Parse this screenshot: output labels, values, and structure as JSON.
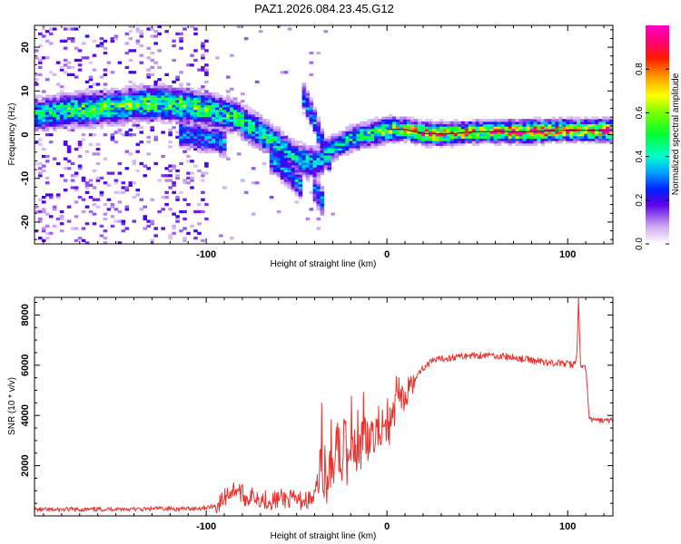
{
  "figure_title": "PAZ1.2026.084.23.45.G12",
  "chart_data": [
    {
      "type": "heatmap",
      "title": "PAZ1.2026.084.23.45.G12",
      "xlabel": "Height of straight line (km)",
      "ylabel": "Frequency (Hz)",
      "xlim": [
        -195,
        125
      ],
      "ylim": [
        -25,
        25
      ],
      "x_ticks": [
        -100,
        0,
        100
      ],
      "y_ticks": [
        -20,
        -10,
        0,
        10,
        20
      ],
      "colorbar": {
        "label": "Normalized spectral amplitude",
        "range": [
          0,
          1
        ],
        "ticks": [
          0.0,
          0.2,
          0.4,
          0.6,
          0.8
        ],
        "tick_labels": [
          "0.0",
          "0.2",
          "0.4",
          "0.6",
          "0.8"
        ]
      },
      "ridge": [
        {
          "x": -192,
          "f": 4.5,
          "a": 0.38,
          "w": 4
        },
        {
          "x": -185,
          "f": 5,
          "a": 0.42,
          "w": 4
        },
        {
          "x": -175,
          "f": 5.5,
          "a": 0.45,
          "w": 4
        },
        {
          "x": -165,
          "f": 5.5,
          "a": 0.5,
          "w": 4
        },
        {
          "x": -155,
          "f": 6,
          "a": 0.48,
          "w": 4
        },
        {
          "x": -145,
          "f": 6.5,
          "a": 0.5,
          "w": 4
        },
        {
          "x": -135,
          "f": 7,
          "a": 0.52,
          "w": 4
        },
        {
          "x": -125,
          "f": 7,
          "a": 0.5,
          "w": 4
        },
        {
          "x": -115,
          "f": 6.5,
          "a": 0.5,
          "w": 4
        },
        {
          "x": -105,
          "f": 6,
          "a": 0.48,
          "w": 4
        },
        {
          "x": -95,
          "f": 5,
          "a": 0.45,
          "w": 4
        },
        {
          "x": -85,
          "f": 4,
          "a": 0.42,
          "w": 4
        },
        {
          "x": -78,
          "f": 2,
          "a": 0.45,
          "w": 4
        },
        {
          "x": -70,
          "f": 0,
          "a": 0.42,
          "w": 4
        },
        {
          "x": -60,
          "f": -3,
          "a": 0.38,
          "w": 4
        },
        {
          "x": -50,
          "f": -6,
          "a": 0.35,
          "w": 4
        },
        {
          "x": -40,
          "f": -7,
          "a": 0.35,
          "w": 4
        },
        {
          "x": -30,
          "f": -3,
          "a": 0.38,
          "w": 3
        },
        {
          "x": -20,
          "f": -1,
          "a": 0.42,
          "w": 3
        },
        {
          "x": -10,
          "f": 0,
          "a": 0.45,
          "w": 3
        },
        {
          "x": 0,
          "f": 1,
          "a": 0.55,
          "w": 3
        },
        {
          "x": 10,
          "f": 1,
          "a": 0.6,
          "w": 2.5
        },
        {
          "x": 20,
          "f": 0,
          "a": 0.85,
          "w": 2.5
        },
        {
          "x": 35,
          "f": 0,
          "a": 0.7,
          "w": 2.5
        },
        {
          "x": 50,
          "f": 0.5,
          "a": 0.65,
          "w": 2.5
        },
        {
          "x": 65,
          "f": 0.5,
          "a": 0.8,
          "w": 2.5
        },
        {
          "x": 80,
          "f": 0.5,
          "a": 0.95,
          "w": 2.5
        },
        {
          "x": 95,
          "f": 0.8,
          "a": 0.7,
          "w": 2.5
        },
        {
          "x": 110,
          "f": 0.8,
          "a": 0.75,
          "w": 2.5
        },
        {
          "x": 123,
          "f": 0.8,
          "a": 0.85,
          "w": 2.5
        }
      ],
      "branches": [
        [
          {
            "x": -115,
            "f": 0
          },
          {
            "x": -100,
            "f": -1
          },
          {
            "x": -90,
            "f": -2
          }
        ],
        [
          {
            "x": -65,
            "f": -6
          },
          {
            "x": -55,
            "f": -9
          },
          {
            "x": -48,
            "f": -12
          }
        ],
        [
          {
            "x": -48,
            "f": 9
          },
          {
            "x": -42,
            "f": 4
          },
          {
            "x": -38,
            "f": -1
          },
          {
            "x": -33,
            "f": -6
          }
        ],
        [
          {
            "x": -42,
            "f": -12
          },
          {
            "x": -36,
            "f": -16
          }
        ]
      ]
    },
    {
      "type": "line",
      "title": "",
      "xlabel": "Height of straight line (km)",
      "ylabel": "SNR (10 * v/v)",
      "xlim": [
        -195,
        125
      ],
      "ylim": [
        0,
        8700
      ],
      "x_ticks": [
        -100,
        0,
        100
      ],
      "y_ticks": [
        2000,
        4000,
        6000,
        8000
      ],
      "series": [
        {
          "name": "SNR",
          "color": "#e8332e",
          "x": [
            -195,
            -185,
            -175,
            -165,
            -155,
            -145,
            -135,
            -125,
            -115,
            -105,
            -98,
            -93,
            -88,
            -83,
            -78,
            -73,
            -68,
            -63,
            -58,
            -53,
            -48,
            -43,
            -40,
            -37,
            -34,
            -30,
            -25,
            -20,
            -15,
            -10,
            -5,
            0,
            5,
            10,
            15,
            20,
            25,
            30,
            35,
            40,
            45,
            50,
            55,
            60,
            65,
            70,
            75,
            80,
            85,
            90,
            95,
            100,
            103,
            105,
            106,
            107,
            108,
            110,
            112,
            115,
            120,
            125
          ],
          "y": [
            250,
            240,
            260,
            250,
            270,
            280,
            260,
            300,
            280,
            300,
            350,
            450,
            900,
            1100,
            700,
            800,
            650,
            600,
            700,
            650,
            600,
            650,
            700,
            1900,
            2200,
            2500,
            2600,
            2700,
            2900,
            3100,
            3300,
            3600,
            4300,
            4800,
            5400,
            5900,
            6150,
            6250,
            6300,
            6350,
            6380,
            6400,
            6400,
            6380,
            6350,
            6300,
            6250,
            6200,
            6150,
            6100,
            6080,
            6050,
            6000,
            6300,
            8600,
            6100,
            5900,
            5900,
            3850,
            3800,
            3800,
            3800
          ]
        }
      ]
    }
  ]
}
